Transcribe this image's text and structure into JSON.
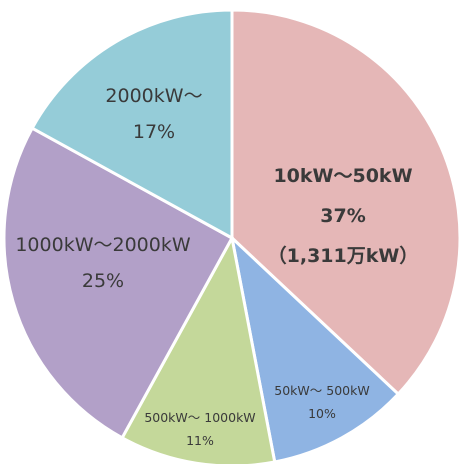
{
  "chart_data": {
    "type": "pie",
    "title": "",
    "slices": [
      {
        "label": "10kW～50kW",
        "percent_label": "37%",
        "extra_label": "（1,311万kW）",
        "value": 37,
        "color": "#e5b7b7"
      },
      {
        "label": "50kW～ 500kW",
        "percent_label": "10%",
        "value": 10,
        "color": "#8fb4e3"
      },
      {
        "label": "500kW～ 1000kW",
        "percent_label": "11%",
        "value": 11,
        "color": "#c4d89a"
      },
      {
        "label": "1000kW～2000kW",
        "percent_label": "25%",
        "value": 25,
        "color": "#b2a0c8"
      },
      {
        "label": "2000kW～",
        "percent_label": "17%",
        "value": 17,
        "color": "#95ccd8"
      }
    ],
    "start_angle_deg": 0,
    "direction": "clockwise",
    "legend": "none"
  }
}
